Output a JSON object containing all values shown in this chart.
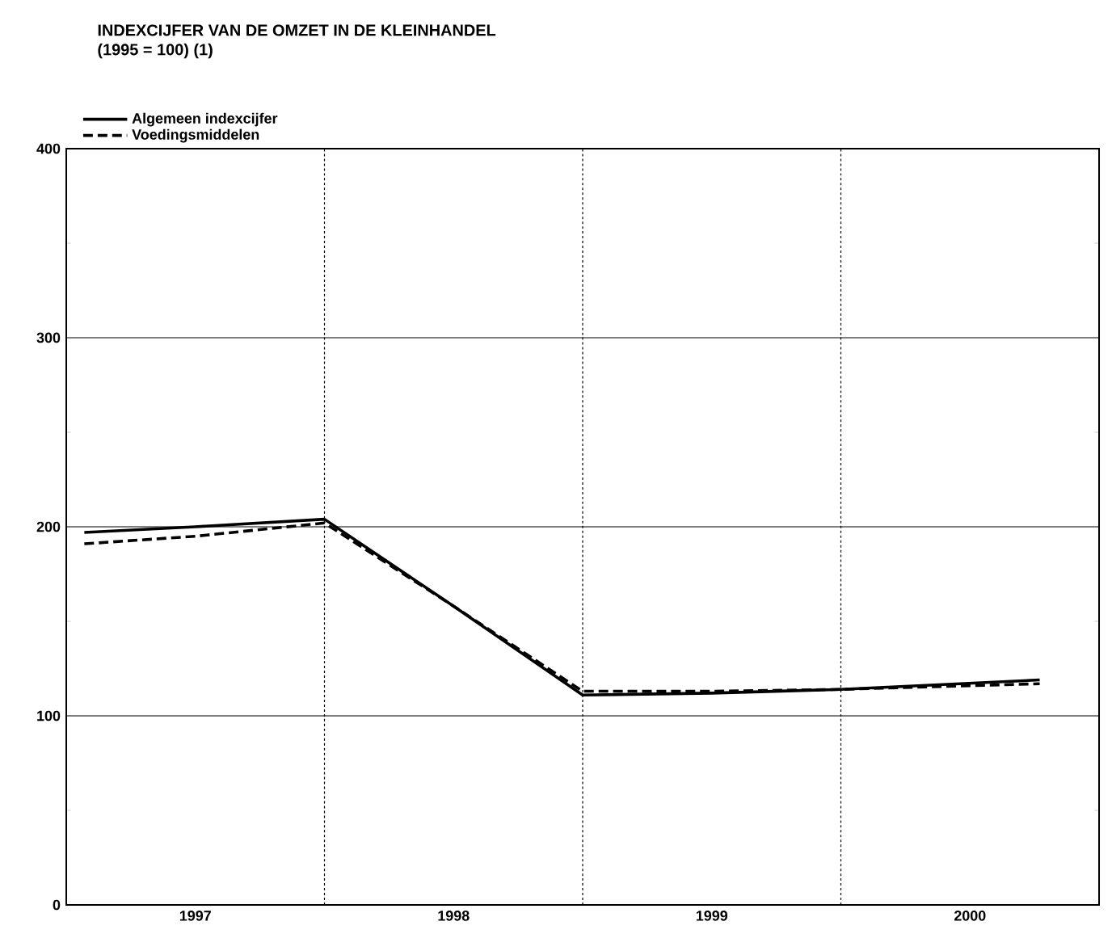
{
  "chart_data": {
    "type": "line",
    "title": "INDEXCIJFER VAN DE OMZET IN DE KLEINHANDEL",
    "subtitle": "(1995 = 100) (1)",
    "series": [
      {
        "name": "Algemeen indexcijfer",
        "color": "#000000",
        "line_style": "solid",
        "x": [
          1997.07,
          1997.5,
          1998.0,
          1998.5,
          1999.0,
          1999.5,
          2000.0,
          2000.77
        ],
        "values": [
          197,
          200,
          204,
          158,
          111,
          112,
          114,
          119
        ]
      },
      {
        "name": "Voedingsmiddelen",
        "color": "#000000",
        "line_style": "dashed",
        "x": [
          1997.07,
          1997.5,
          1998.0,
          1998.5,
          1999.0,
          1999.5,
          2000.0,
          2000.77
        ],
        "values": [
          191,
          195,
          202,
          158,
          113,
          113,
          114,
          117
        ]
      }
    ],
    "xlim": [
      1997,
      2001
    ],
    "xticks": [
      {
        "value": 1997.5,
        "label": "1997"
      },
      {
        "value": 1998.5,
        "label": "1998"
      },
      {
        "value": 1999.5,
        "label": "1999"
      },
      {
        "value": 2000.5,
        "label": "2000"
      }
    ],
    "ylim": [
      0,
      400
    ],
    "yticks": [
      0,
      100,
      200,
      300,
      400
    ],
    "grid": "y",
    "ref_lines": [
      {
        "axis": "x",
        "value": 1998,
        "line_style": "dotted"
      },
      {
        "axis": "x",
        "value": 1999,
        "line_style": "dotted"
      },
      {
        "axis": "x",
        "value": 2000,
        "line_style": "dotted"
      }
    ],
    "legend": "top left",
    "marker": "none"
  }
}
